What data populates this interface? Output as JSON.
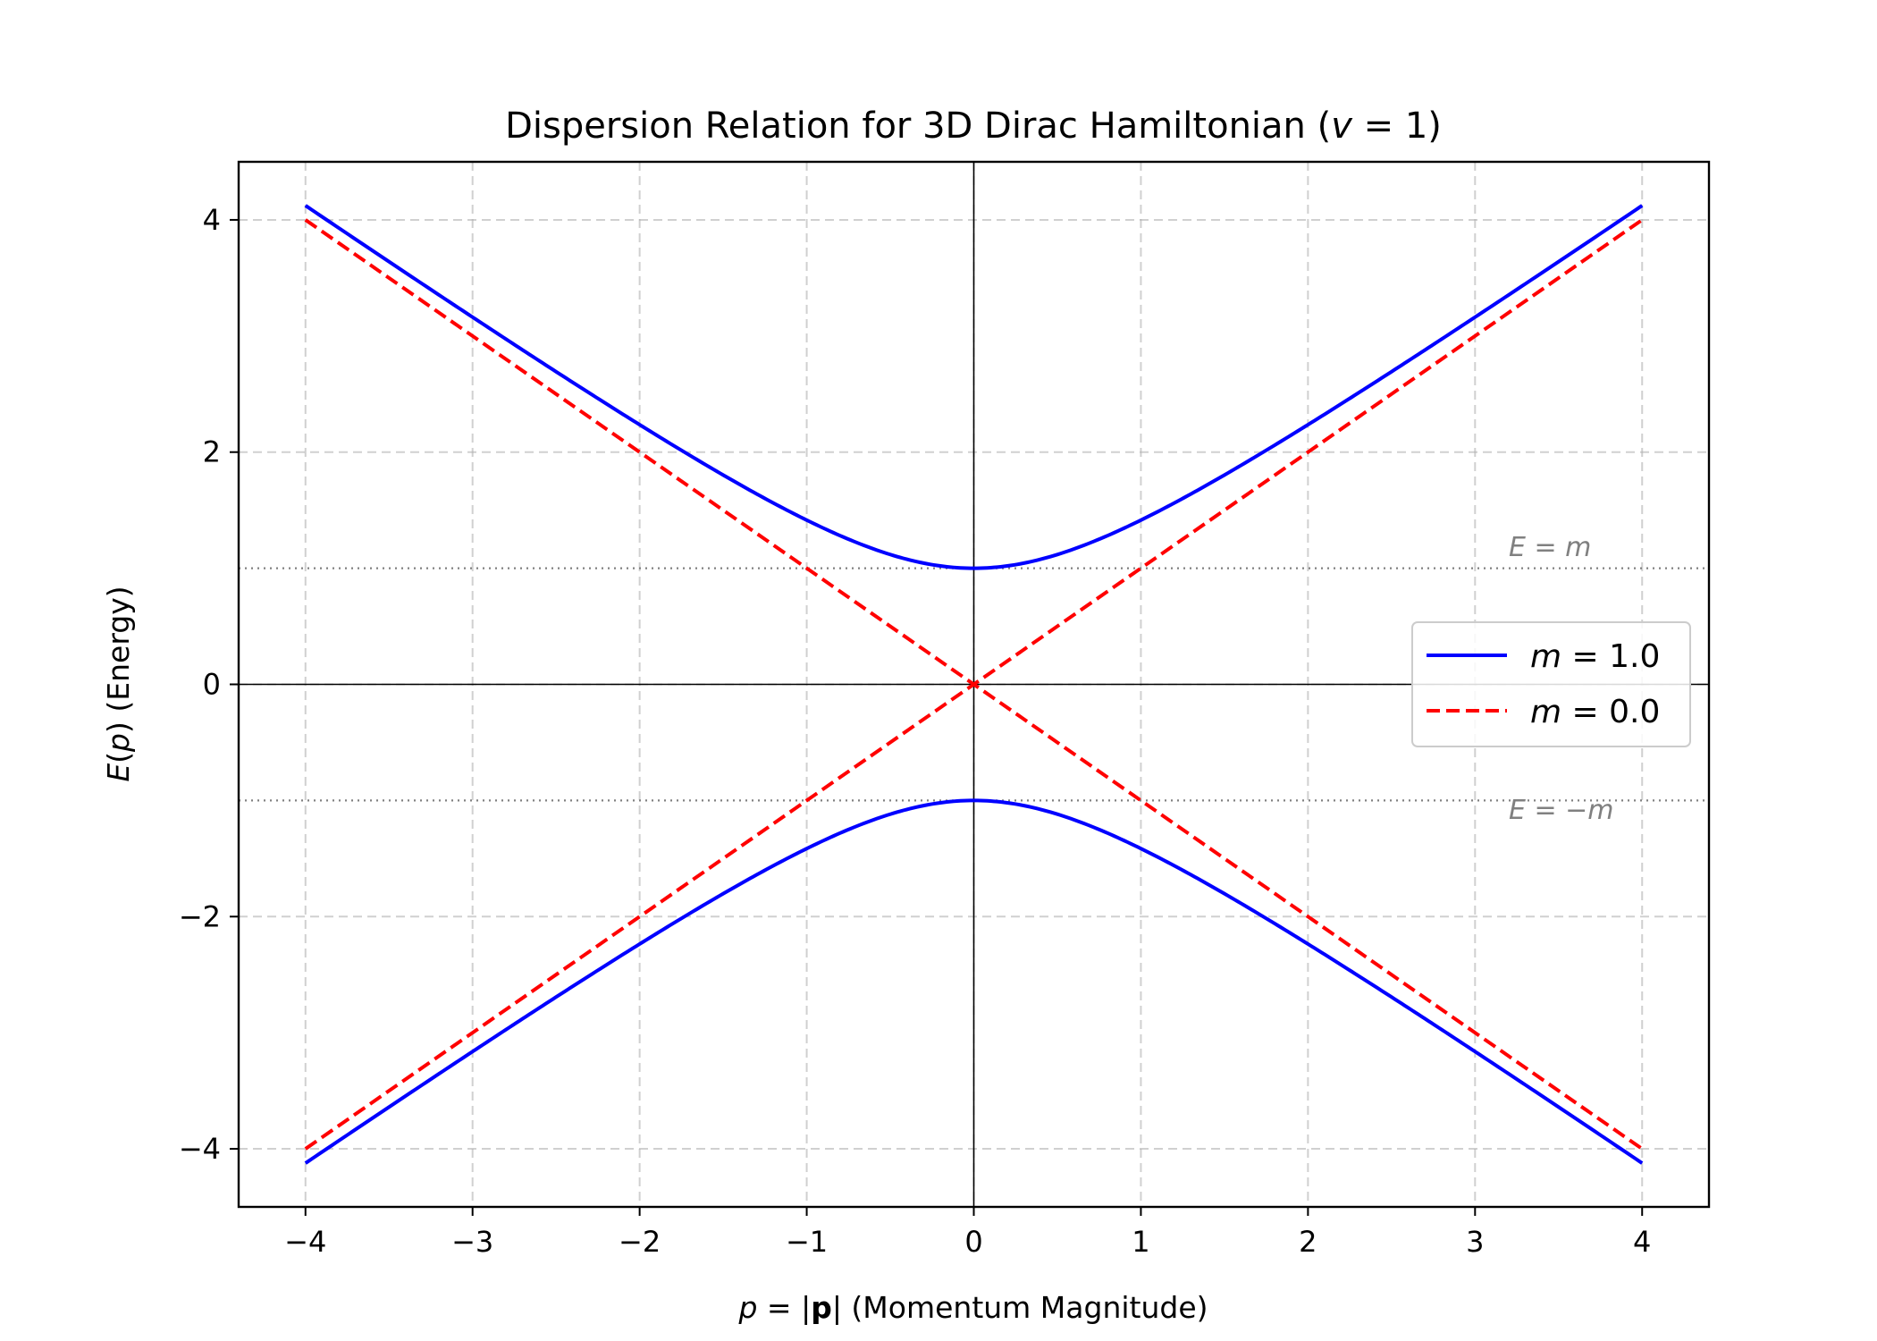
{
  "chart_data": {
    "type": "line",
    "title": "Dispersion Relation for 3D Dirac Hamiltonian (v = 1)",
    "xlabel": "p = |p| (Momentum Magnitude)",
    "ylabel": "E(p) (Energy)",
    "xlim": [
      -4.4,
      4.4
    ],
    "ylim": [
      -4.5,
      4.5
    ],
    "xticks": [
      -4,
      -3,
      -2,
      -1,
      0,
      1,
      2,
      3,
      4
    ],
    "xtick_labels": [
      "−4",
      "−3",
      "−2",
      "−1",
      "0",
      "1",
      "2",
      "3",
      "4"
    ],
    "yticks": [
      -4,
      -2,
      0,
      2,
      4
    ],
    "ytick_labels": [
      "−4",
      "−2",
      "0",
      "2",
      "4"
    ],
    "grid": true,
    "legend_position": "center-right",
    "series": [
      {
        "name": "m = 1.0",
        "color": "#0000ff",
        "style": "solid",
        "x": [
          -4,
          -3.5,
          -3,
          -2.5,
          -2,
          -1.5,
          -1,
          -0.5,
          0,
          0.5,
          1,
          1.5,
          2,
          2.5,
          3,
          3.5,
          4
        ],
        "y_upper": [
          4.123,
          3.64,
          3.162,
          2.693,
          2.236,
          1.803,
          1.414,
          1.118,
          1.0,
          1.118,
          1.414,
          1.803,
          2.236,
          2.693,
          3.162,
          3.64,
          4.123
        ],
        "y_lower": [
          -4.123,
          -3.64,
          -3.162,
          -2.693,
          -2.236,
          -1.803,
          -1.414,
          -1.118,
          -1.0,
          -1.118,
          -1.414,
          -1.803,
          -2.236,
          -2.693,
          -3.162,
          -3.64,
          -4.123
        ]
      },
      {
        "name": "m = 0.0",
        "color": "#ff0000",
        "style": "dashed",
        "x": [
          -4,
          -2,
          0,
          2,
          4
        ],
        "y_upper": [
          4,
          2,
          0,
          2,
          4
        ],
        "y_lower": [
          -4,
          -2,
          0,
          -2,
          -4
        ]
      }
    ],
    "reference_lines": [
      {
        "y": 1,
        "label": "E = m",
        "color": "#808080",
        "style": "dotted"
      },
      {
        "y": -1,
        "label": "E = −m",
        "color": "#808080",
        "style": "dotted"
      }
    ],
    "axis_lines": {
      "x0": true,
      "y0": true,
      "color": "#000000"
    }
  }
}
